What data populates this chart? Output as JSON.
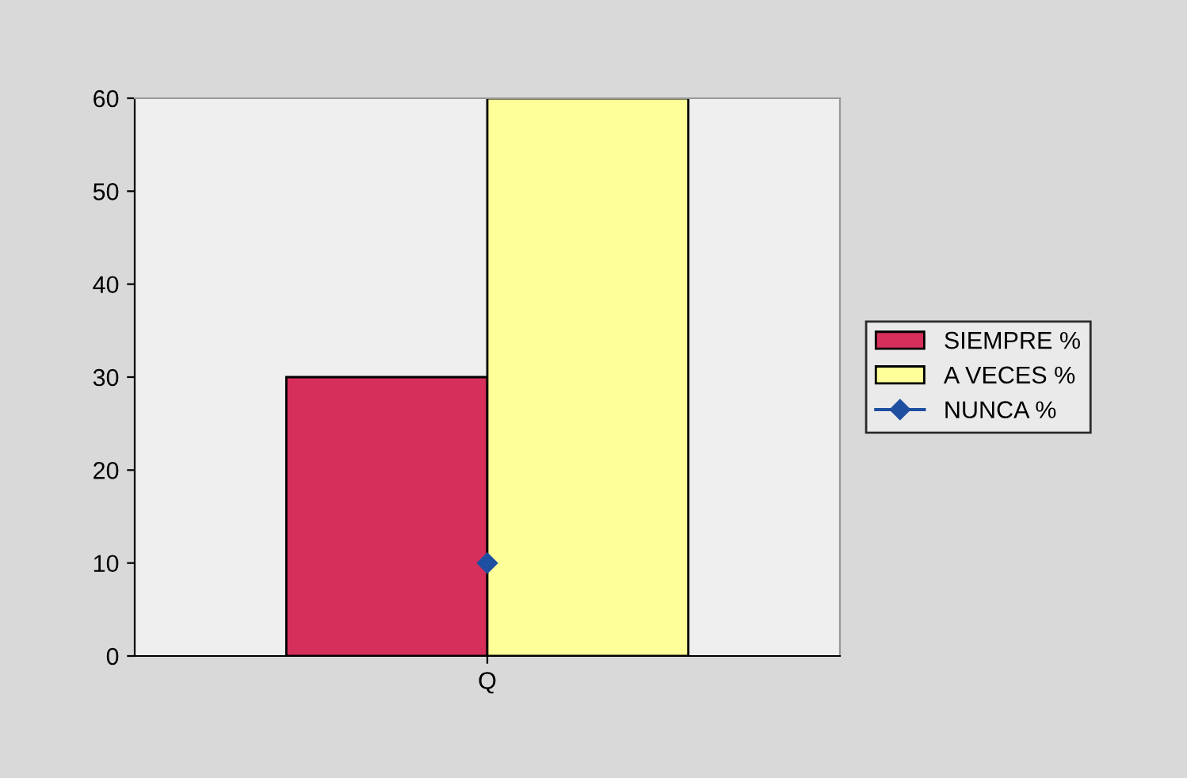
{
  "chart_data": {
    "type": "bar",
    "categories": [
      "Q"
    ],
    "series": [
      {
        "name": "SIEMPRE %",
        "color": "#d62f5c",
        "values": [
          30
        ]
      },
      {
        "name": "A VECES %",
        "color": "#ffff99",
        "values": [
          60
        ]
      },
      {
        "name": "NUNCA %",
        "color": "#1f4fa0",
        "values": [
          10
        ],
        "type": "line",
        "marker": "diamond"
      }
    ],
    "ylim": [
      0,
      60
    ],
    "yticks": [
      0,
      10,
      20,
      30,
      40,
      50,
      60
    ],
    "grid": false,
    "legend": "right"
  }
}
